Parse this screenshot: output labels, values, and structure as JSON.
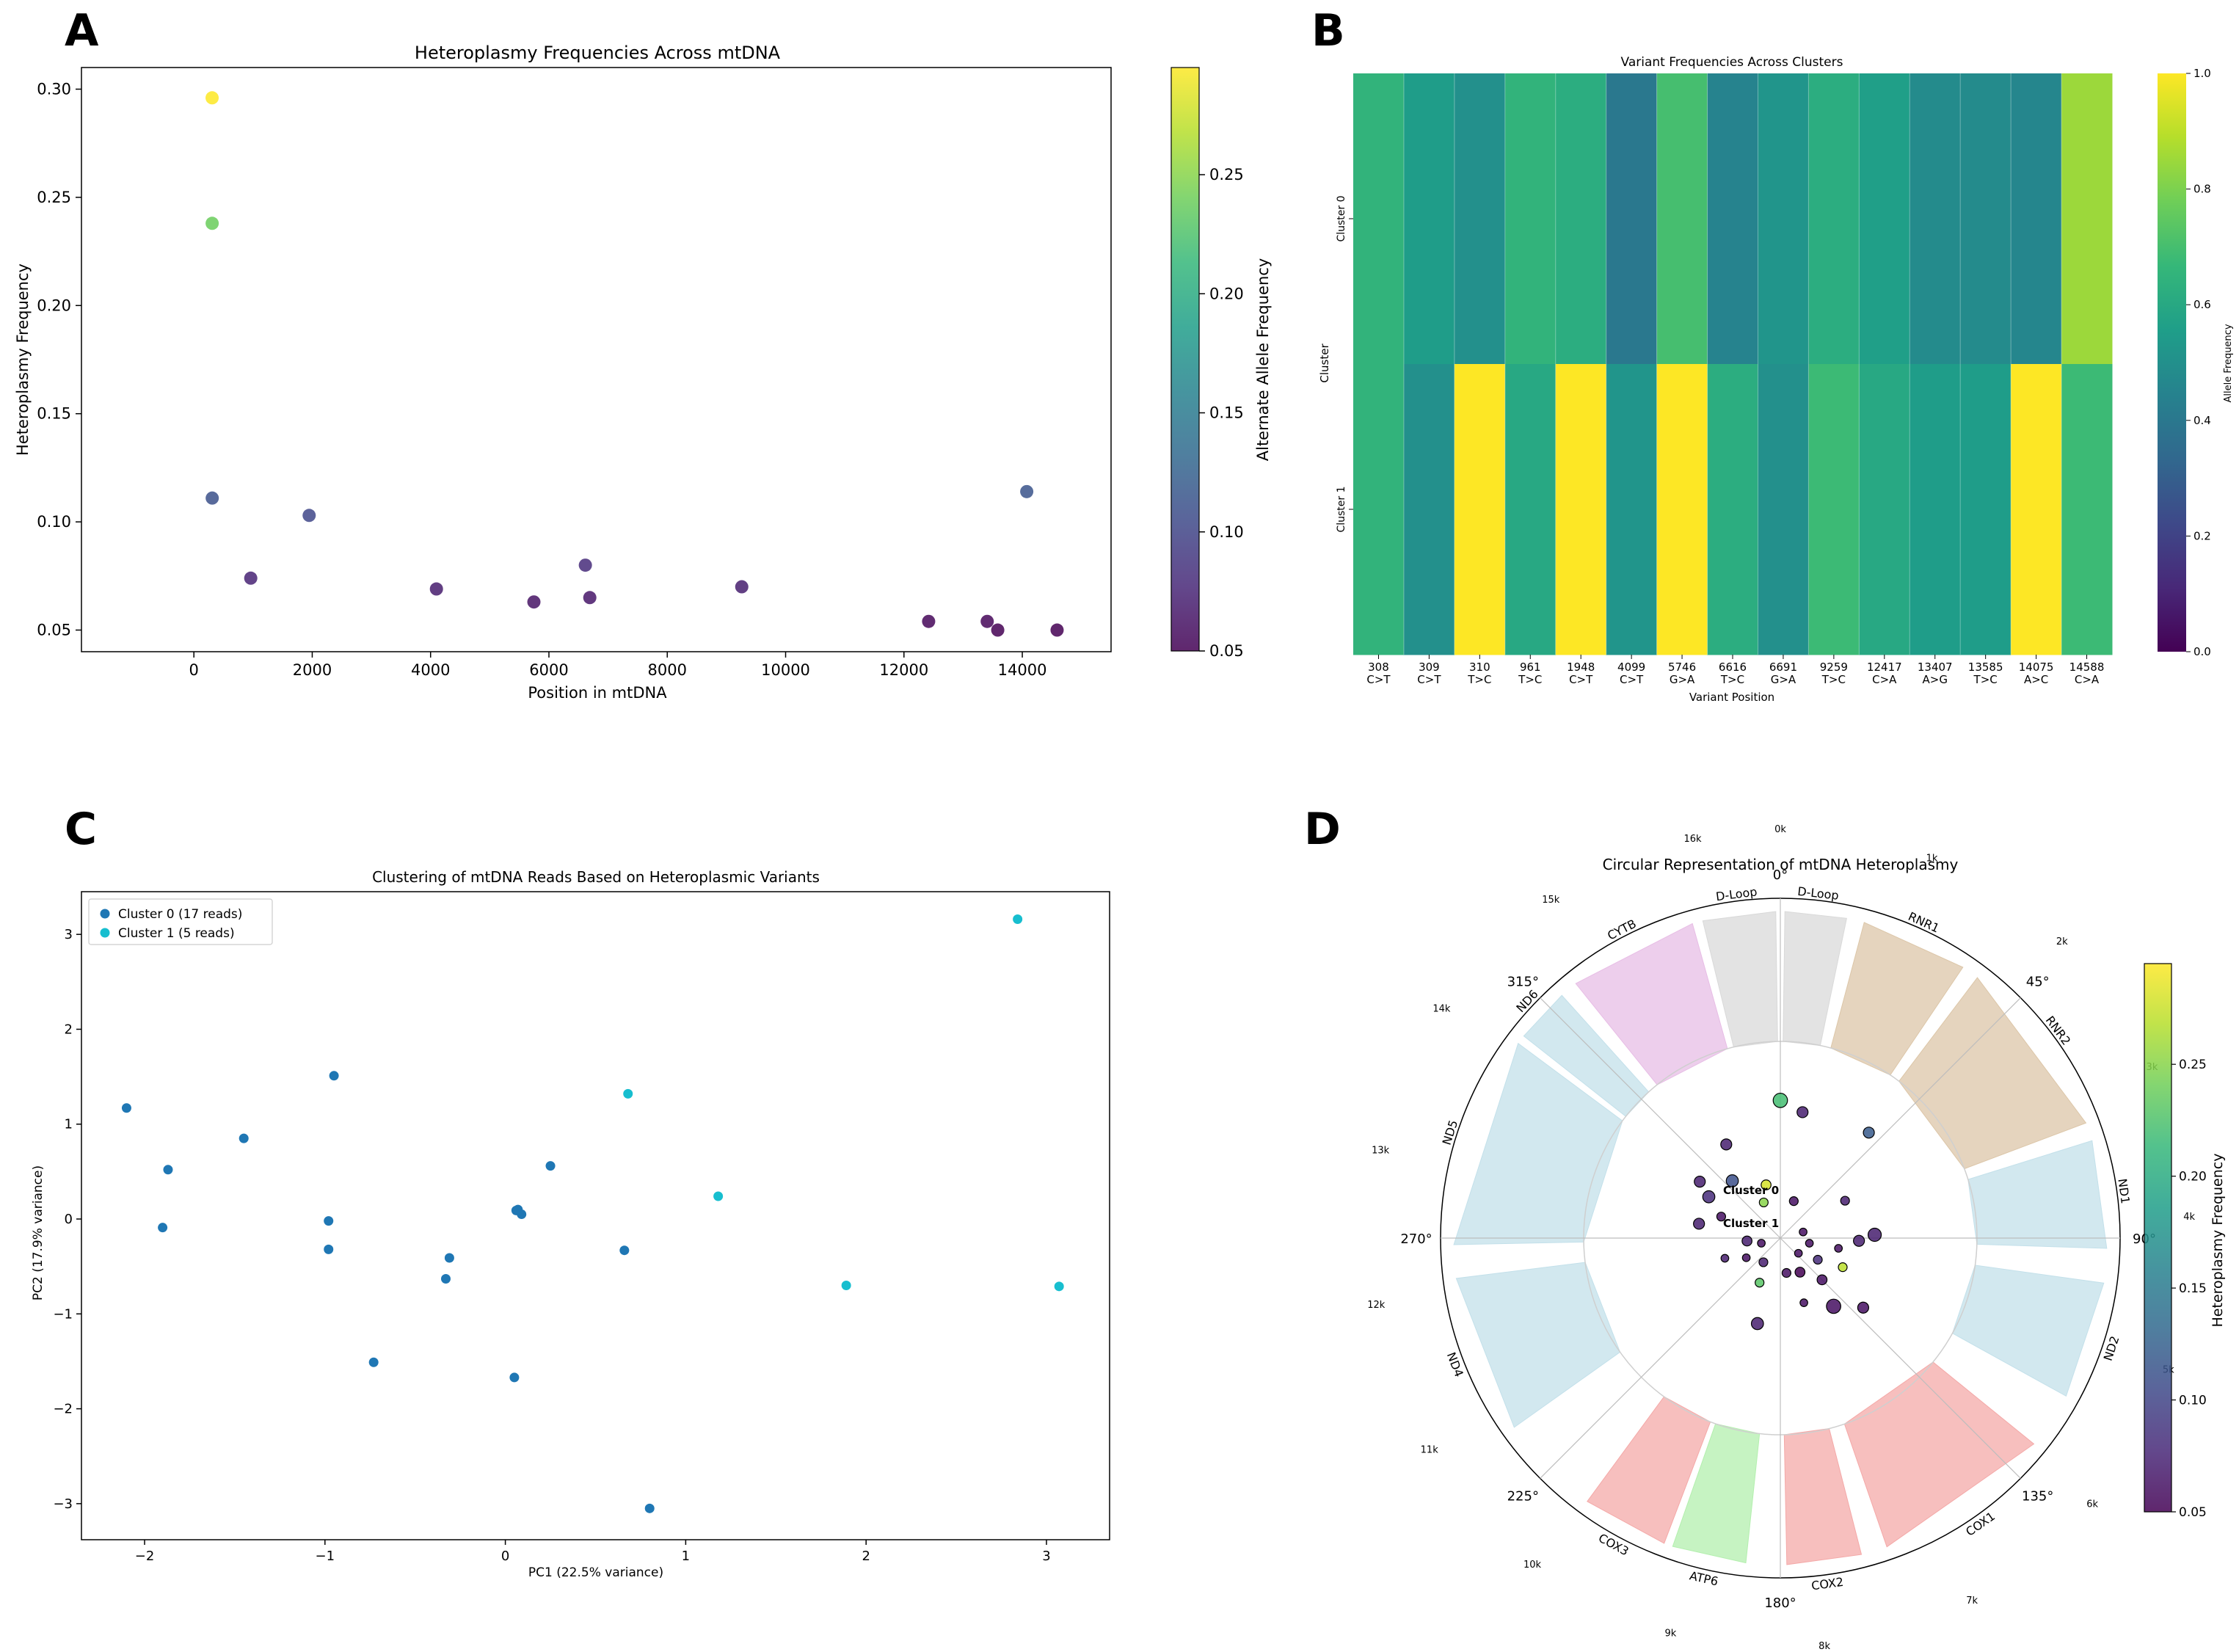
{
  "colors": {
    "viridis": [
      "#440154",
      "#482878",
      "#3e4989",
      "#31688e",
      "#26828e",
      "#1f9e89",
      "#35b779",
      "#6ece58",
      "#b5de2b",
      "#fde725"
    ],
    "cluster0": "#1f77b4",
    "cluster1": "#17becf"
  },
  "chart_data": [
    {
      "panel": "A",
      "type": "scatter",
      "title": "Heteroplasmy Frequencies Across mtDNA",
      "xlabel": "Position in mtDNA",
      "ylabel": "Heteroplasmy Frequency",
      "xlim": [
        -1900,
        15500
      ],
      "ylim": [
        0.04,
        0.31
      ],
      "xticks": [
        0,
        2000,
        4000,
        6000,
        8000,
        10000,
        12000,
        14000
      ],
      "xtick_labels": [
        "0",
        "2000",
        "4000",
        "6000",
        "8000",
        "10000",
        "12000",
        "14000"
      ],
      "yticks": [
        0.05,
        0.1,
        0.15,
        0.2,
        0.25,
        0.3
      ],
      "ytick_labels": [
        "0.05",
        "0.10",
        "0.15",
        "0.20",
        "0.25",
        "0.30"
      ],
      "colorbar": {
        "label": "Alternate Allele Frequency",
        "range": [
          0.05,
          0.295
        ],
        "ticks": [
          0.05,
          0.1,
          0.15,
          0.2,
          0.25
        ],
        "tick_labels": [
          "0.05",
          "0.10",
          "0.15",
          "0.20",
          "0.25"
        ]
      },
      "points": [
        {
          "x": 308,
          "y": 0.296
        },
        {
          "x": 309,
          "y": 0.238
        },
        {
          "x": 310,
          "y": 0.111
        },
        {
          "x": 961,
          "y": 0.074
        },
        {
          "x": 1948,
          "y": 0.103
        },
        {
          "x": 4099,
          "y": 0.069
        },
        {
          "x": 5746,
          "y": 0.063
        },
        {
          "x": 6616,
          "y": 0.08
        },
        {
          "x": 6691,
          "y": 0.065
        },
        {
          "x": 9259,
          "y": 0.07
        },
        {
          "x": 12417,
          "y": 0.054
        },
        {
          "x": 13407,
          "y": 0.054
        },
        {
          "x": 13585,
          "y": 0.05
        },
        {
          "x": 14075,
          "y": 0.114
        },
        {
          "x": 14588,
          "y": 0.05
        }
      ]
    },
    {
      "panel": "B",
      "type": "heatmap",
      "title": "Variant Frequencies Across Clusters",
      "xlabel": "Variant Position",
      "ylabel": "Cluster",
      "rows": [
        "Cluster 0",
        "Cluster 1"
      ],
      "columns": [
        {
          "pos": "308",
          "change": "C>T"
        },
        {
          "pos": "309",
          "change": "C>T"
        },
        {
          "pos": "310",
          "change": "T>C"
        },
        {
          "pos": "961",
          "change": "T>C"
        },
        {
          "pos": "1948",
          "change": "C>T"
        },
        {
          "pos": "4099",
          "change": "C>T"
        },
        {
          "pos": "5746",
          "change": "G>A"
        },
        {
          "pos": "6616",
          "change": "T>C"
        },
        {
          "pos": "6691",
          "change": "G>A"
        },
        {
          "pos": "9259",
          "change": "T>C"
        },
        {
          "pos": "12417",
          "change": "C>A"
        },
        {
          "pos": "13407",
          "change": "A>G"
        },
        {
          "pos": "13585",
          "change": "T>C"
        },
        {
          "pos": "14075",
          "change": "A>C"
        },
        {
          "pos": "14588",
          "change": "C>A"
        }
      ],
      "values": [
        [
          0.65,
          0.55,
          0.5,
          0.65,
          0.62,
          0.4,
          0.7,
          0.45,
          0.52,
          0.62,
          0.56,
          0.48,
          0.48,
          0.46,
          0.85
        ],
        [
          0.65,
          0.5,
          1.0,
          0.6,
          1.0,
          0.52,
          1.0,
          0.62,
          0.5,
          0.68,
          0.6,
          0.55,
          0.55,
          1.0,
          0.68
        ]
      ],
      "colorbar": {
        "label": "Allele Frequency",
        "range": [
          0.0,
          1.0
        ],
        "ticks": [
          0.0,
          0.2,
          0.4,
          0.6,
          0.8,
          1.0
        ],
        "tick_labels": [
          "0.0",
          "0.2",
          "0.4",
          "0.6",
          "0.8",
          "1.0"
        ]
      }
    },
    {
      "panel": "C",
      "type": "scatter",
      "title": "Clustering of mtDNA Reads Based on Heteroplasmic Variants",
      "xlabel": "PC1 (22.5% variance)",
      "ylabel": "PC2 (17.9% variance)",
      "xlim": [
        -2.35,
        3.35
      ],
      "ylim": [
        -3.38,
        3.45
      ],
      "xticks": [
        -2,
        -1,
        0,
        1,
        2,
        3
      ],
      "xtick_labels": [
        "−2",
        "−1",
        "0",
        "1",
        "2",
        "3"
      ],
      "yticks": [
        -3,
        -2,
        -1,
        0,
        1,
        2,
        3
      ],
      "ytick_labels": [
        "−3",
        "−2",
        "−1",
        "0",
        "1",
        "2",
        "3"
      ],
      "legend": "upper left",
      "series": [
        {
          "name": "Cluster 0 (17 reads)",
          "points": [
            [
              -2.1,
              1.17
            ],
            [
              -1.9,
              -0.09
            ],
            [
              -1.87,
              0.52
            ],
            [
              -1.45,
              0.85
            ],
            [
              -0.95,
              1.51
            ],
            [
              -0.98,
              -0.02
            ],
            [
              -0.98,
              -0.32
            ],
            [
              -0.33,
              -0.63
            ],
            [
              -0.31,
              -0.41
            ],
            [
              -0.73,
              -1.51
            ],
            [
              0.07,
              0.1
            ],
            [
              0.09,
              0.05
            ],
            [
              0.05,
              -1.67
            ],
            [
              0.25,
              0.56
            ],
            [
              0.66,
              -0.33
            ],
            [
              0.8,
              -3.05
            ],
            [
              0.06,
              0.09
            ]
          ]
        },
        {
          "name": "Cluster 1 (5 reads)",
          "points": [
            [
              0.68,
              1.32
            ],
            [
              1.18,
              0.24
            ],
            [
              1.89,
              -0.7
            ],
            [
              2.84,
              3.16
            ],
            [
              3.07,
              -0.71
            ]
          ]
        }
      ]
    },
    {
      "panel": "D",
      "type": "polar",
      "title": "Circular Representation of mtDNA Heteroplasmy",
      "genome_length": 16569,
      "angle_labels": [
        "0°",
        "45°",
        "90°",
        "135°",
        "180°",
        "225°",
        "270°",
        "315°"
      ],
      "kb_labels": [
        "0k",
        "1k",
        "2k",
        "3k",
        "4k",
        "5k",
        "6k",
        "7k",
        "8k",
        "9k",
        "10k",
        "11k",
        "12k",
        "13k",
        "14k",
        "15k",
        "16k"
      ],
      "cluster_labels": [
        "Cluster 0",
        "Cluster 1"
      ],
      "genes": [
        {
          "name": "D-Loop",
          "start": 15900,
          "end": 16569,
          "color": "#d9d9d9"
        },
        {
          "name": "D-Loop",
          "start": 0,
          "end": 576,
          "color": "#d9d9d9"
        },
        {
          "name": "RNR1",
          "start": 648,
          "end": 1601,
          "color": "#dcc6a8"
        },
        {
          "name": "RNR2",
          "start": 1671,
          "end": 3229,
          "color": "#dcc6a8"
        },
        {
          "name": "ND1",
          "start": 3307,
          "end": 4262,
          "color": "#c3e0ea"
        },
        {
          "name": "ND2",
          "start": 4470,
          "end": 5511,
          "color": "#c3e0ea"
        },
        {
          "name": "COX1",
          "start": 5904,
          "end": 7445,
          "color": "#f4a9a8"
        },
        {
          "name": "COX2",
          "start": 7586,
          "end": 8269,
          "color": "#f4a9a8"
        },
        {
          "name": "ATP6",
          "start": 8527,
          "end": 9207,
          "color": "#b3efae"
        },
        {
          "name": "COX3",
          "start": 9207,
          "end": 9990,
          "color": "#f4a9a8"
        },
        {
          "name": "ND4",
          "start": 10760,
          "end": 12137,
          "color": "#c3e0ea"
        },
        {
          "name": "ND5",
          "start": 12337,
          "end": 14148,
          "color": "#c3e0ea"
        },
        {
          "name": "ND6",
          "start": 14149,
          "end": 14673,
          "color": "#c3e0ea"
        },
        {
          "name": "CYTB",
          "start": 14747,
          "end": 15887,
          "color": "#e7bde5"
        }
      ],
      "colorbar": {
        "label": "Heteroplasmy Frequency",
        "range": [
          0.05,
          0.295
        ],
        "ticks": [
          0.05,
          0.1,
          0.15,
          0.2,
          0.25
        ],
        "tick_labels": [
          "0.05",
          "0.10",
          "0.15",
          "0.20",
          "0.25"
        ]
      },
      "points": [
        {
          "angle": 0,
          "r": 0.7,
          "v": 0.22,
          "s": 1.3
        },
        {
          "angle": 10,
          "r": 0.65,
          "v": 0.07,
          "s": 1
        },
        {
          "angle": 40,
          "r": 0.7,
          "v": 0.12,
          "s": 1
        },
        {
          "angle": 60,
          "r": 0.38,
          "v": 0.07,
          "s": 0.8
        },
        {
          "angle": 88,
          "r": 0.48,
          "v": 0.07,
          "s": 1.2
        },
        {
          "angle": 92,
          "r": 0.4,
          "v": 0.07,
          "s": 1
        },
        {
          "angle": 100,
          "r": 0.3,
          "v": 0.06,
          "s": 0.7
        },
        {
          "angle": 115,
          "r": 0.35,
          "v": 0.27,
          "s": 0.8
        },
        {
          "angle": 130,
          "r": 0.55,
          "v": 0.06,
          "s": 1
        },
        {
          "angle": 142,
          "r": 0.44,
          "v": 0.06,
          "s": 1.3
        },
        {
          "angle": 135,
          "r": 0.3,
          "v": 0.06,
          "s": 0.9
        },
        {
          "angle": 150,
          "r": 0.2,
          "v": 0.05,
          "s": 0.9
        },
        {
          "angle": 170,
          "r": 0.18,
          "v": 0.06,
          "s": 0.8
        },
        {
          "angle": 195,
          "r": 0.45,
          "v": 0.07,
          "s": 1.1
        },
        {
          "angle": 205,
          "r": 0.25,
          "v": 0.23,
          "s": 0.8
        },
        {
          "angle": 265,
          "r": 0.17,
          "v": 0.07,
          "s": 0.9
        },
        {
          "angle": 280,
          "r": 0.42,
          "v": 0.07,
          "s": 1
        },
        {
          "angle": 300,
          "r": 0.42,
          "v": 0.08,
          "s": 1.1
        },
        {
          "angle": 305,
          "r": 0.5,
          "v": 0.07,
          "s": 1
        },
        {
          "angle": 320,
          "r": 0.38,
          "v": 0.11,
          "s": 1.1
        },
        {
          "angle": 330,
          "r": 0.55,
          "v": 0.07,
          "s": 1
        },
        {
          "angle": 345,
          "r": 0.28,
          "v": 0.28,
          "s": 0.9
        },
        {
          "angle": 335,
          "r": 0.2,
          "v": 0.25,
          "s": 0.8
        },
        {
          "angle": 20,
          "r": 0.2,
          "v": 0.06,
          "s": 0.8
        },
        {
          "angle": 75,
          "r": 0.12,
          "v": 0.06,
          "s": 0.7
        },
        {
          "angle": 240,
          "r": 0.2,
          "v": 0.06,
          "s": 0.7
        },
        {
          "angle": 215,
          "r": 0.15,
          "v": 0.07,
          "s": 0.8
        },
        {
          "angle": 255,
          "r": 0.1,
          "v": 0.06,
          "s": 0.7
        },
        {
          "angle": 130,
          "r": 0.12,
          "v": 0.06,
          "s": 0.7
        },
        {
          "angle": 160,
          "r": 0.35,
          "v": 0.06,
          "s": 0.7
        },
        {
          "angle": 120,
          "r": 0.22,
          "v": 0.08,
          "s": 0.8
        },
        {
          "angle": 100,
          "r": 0.15,
          "v": 0.06,
          "s": 0.7
        },
        {
          "angle": 290,
          "r": 0.32,
          "v": 0.06,
          "s": 0.8
        },
        {
          "angle": 250,
          "r": 0.3,
          "v": 0.07,
          "s": 0.7
        }
      ]
    }
  ]
}
